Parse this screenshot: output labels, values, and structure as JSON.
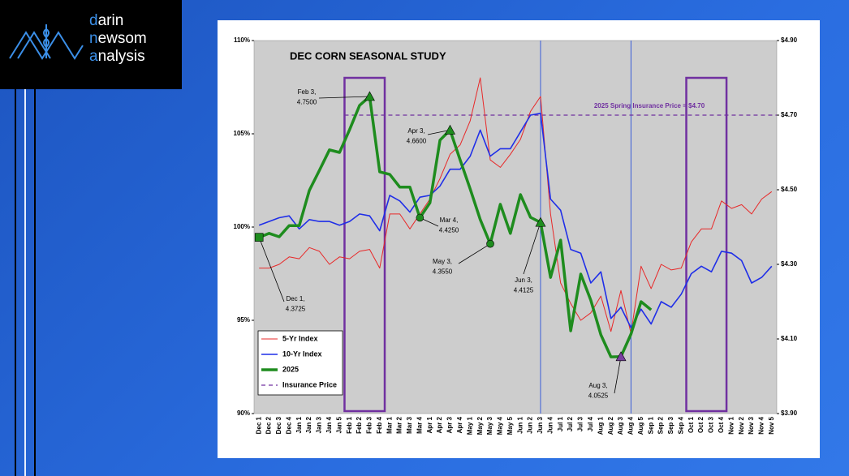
{
  "logo": {
    "lines": [
      "darin",
      "newsom",
      "analysis"
    ]
  },
  "chart_data": {
    "type": "line",
    "title": "DEC CORN SEASONAL STUDY",
    "categories": [
      "Dec 1",
      "Dec 2",
      "Dec 3",
      "Dec 4",
      "Jan 1",
      "Jan 2",
      "Jan 3",
      "Jan 4",
      "Jan 5",
      "Feb 1",
      "Feb 2",
      "Feb 3",
      "Feb 4",
      "Mar 1",
      "Mar 2",
      "Mar 3",
      "Mar 4",
      "Apr 1",
      "Apr 2",
      "Apr 3",
      "Apr 4",
      "May 1",
      "May 2",
      "May 3",
      "May 4",
      "May 5",
      "Jun 1",
      "Jun 2",
      "Jun 3",
      "Jun 4",
      "Jul 1",
      "Jul 2",
      "Jul 3",
      "Jul 4",
      "Aug 1",
      "Aug 2",
      "Aug 3",
      "Aug 4",
      "Aug 5",
      "Sep 1",
      "Sep 2",
      "Sep 3",
      "Sep 4",
      "Oct 1",
      "Oct 2",
      "Oct 3",
      "Oct 4",
      "Nov 1",
      "Nov 2",
      "Nov 3",
      "Nov 4",
      "Nov 5"
    ],
    "series": [
      {
        "name": "5-Yr Index",
        "color": "#e82828",
        "axis": "y",
        "values": [
          97.8,
          97.8,
          98.0,
          98.4,
          98.3,
          98.9,
          98.7,
          98.0,
          98.4,
          98.3,
          98.7,
          98.8,
          97.8,
          100.7,
          100.7,
          99.9,
          100.7,
          101.5,
          102.6,
          103.9,
          104.4,
          105.7,
          108.0,
          103.6,
          103.2,
          103.9,
          104.7,
          106.2,
          107.0,
          100.7,
          97.0,
          95.9,
          95.0,
          95.4,
          96.3,
          94.4,
          96.6,
          94.3,
          97.9,
          96.7,
          98.0,
          97.7,
          97.8,
          99.2,
          99.9,
          99.9,
          101.4,
          101.0,
          101.2,
          100.7,
          101.5,
          101.9
        ]
      },
      {
        "name": "10-Yr Index",
        "color": "#1f2ee8",
        "axis": "y",
        "values": [
          100.1,
          100.3,
          100.5,
          100.6,
          99.9,
          100.4,
          100.3,
          100.3,
          100.1,
          100.3,
          100.7,
          100.6,
          99.8,
          101.7,
          101.4,
          100.8,
          101.6,
          101.7,
          102.2,
          103.1,
          103.1,
          103.8,
          105.2,
          103.8,
          104.2,
          104.2,
          105.1,
          106.0,
          106.1,
          101.5,
          100.9,
          98.8,
          98.6,
          97.0,
          97.6,
          95.1,
          95.7,
          94.6,
          95.6,
          94.8,
          96.0,
          95.7,
          96.4,
          97.5,
          97.9,
          97.6,
          98.7,
          98.6,
          98.2,
          97.0,
          97.3,
          97.9
        ]
      },
      {
        "name": "2025",
        "color": "#1e8c1e",
        "axis": "y2",
        "values": [
          4.3725,
          4.383,
          4.374,
          4.404,
          4.404,
          4.498,
          4.552,
          4.607,
          4.6,
          4.661,
          4.726,
          4.75,
          4.548,
          4.541,
          4.507,
          4.507,
          4.425,
          4.465,
          4.633,
          4.66,
          4.58,
          4.502,
          4.42,
          4.355,
          4.461,
          4.383,
          4.487,
          4.426,
          4.4125,
          4.265,
          4.365,
          4.122,
          4.274,
          4.204,
          4.111,
          4.052,
          4.0525,
          4.113,
          4.2,
          4.178,
          null,
          null,
          null,
          null,
          null,
          null,
          null,
          null,
          null,
          null,
          null,
          null
        ]
      }
    ],
    "insurance": {
      "name": "Insurance Price",
      "label": "2025 Spring Insurance Price = $4.70",
      "value": 4.7,
      "color": "#7030a0",
      "from": "Feb 1"
    },
    "ylim": [
      90,
      110
    ],
    "yticks": [
      {
        "value": 90,
        "label": "90%"
      },
      {
        "value": 95,
        "label": "95%"
      },
      {
        "value": 100,
        "label": "100%"
      },
      {
        "value": 105,
        "label": "105%"
      },
      {
        "value": 110,
        "label": "110%"
      }
    ],
    "y2lim": [
      3.9,
      4.9
    ],
    "y2ticks": [
      {
        "value": 3.9,
        "label": "$3.90"
      },
      {
        "value": 4.1,
        "label": "$4.10"
      },
      {
        "value": 4.3,
        "label": "$4.30"
      },
      {
        "value": 4.5,
        "label": "$4.50"
      },
      {
        "value": 4.7,
        "label": "$4.70"
      },
      {
        "value": 4.9,
        "label": "$4.90"
      }
    ],
    "highlight_ranges": [
      [
        "Feb 1",
        "Feb 4"
      ],
      [
        "Oct 1",
        "Oct 4"
      ]
    ],
    "highlight_color": "#7030a0",
    "vlines": [
      "Jun 3",
      "Aug 4"
    ],
    "legend": "lower left",
    "annotations": [
      {
        "x": "Dec 1",
        "y": 4.3725,
        "lines": [
          "Dec 1,",
          "4.3725"
        ],
        "marker": "square"
      },
      {
        "x": "Feb 3",
        "y": 4.75,
        "lines": [
          "Feb 3,",
          "4.7500"
        ],
        "marker": "triangle"
      },
      {
        "x": "Mar 4",
        "y": 4.425,
        "lines": [
          "Mar 4,",
          "4.4250"
        ],
        "marker": "circle"
      },
      {
        "x": "Apr 3",
        "y": 4.66,
        "lines": [
          "Apr 3,",
          "4.6600"
        ],
        "marker": "triangle"
      },
      {
        "x": "May 3",
        "y": 4.355,
        "lines": [
          "May 3,",
          "4.3550"
        ],
        "marker": "circle"
      },
      {
        "x": "Jun 3",
        "y": 4.4125,
        "lines": [
          "Jun 3,",
          "4.4125"
        ],
        "marker": "triangle"
      },
      {
        "x": "Aug 3",
        "y": 4.0525,
        "lines": [
          "Aug 3,",
          "4.0525"
        ],
        "marker": "triangle",
        "color": "#7a3fa0"
      }
    ]
  }
}
